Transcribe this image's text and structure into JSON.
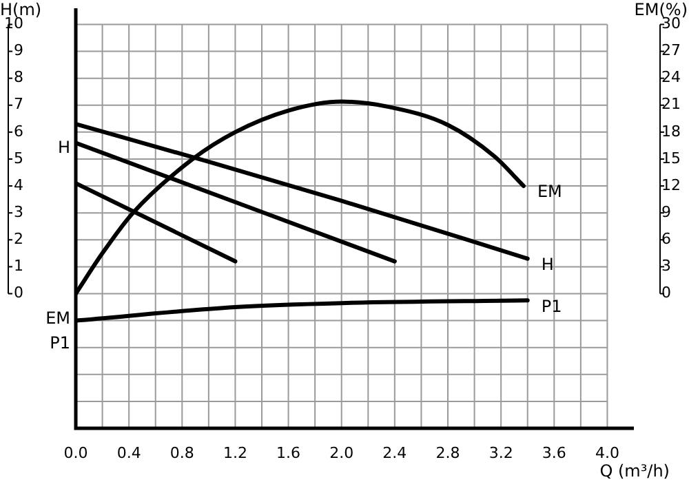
{
  "chart_data": {
    "type": "line",
    "xlabel": "Q (m³/h)",
    "ylabel": "H(m)",
    "y2label": "EM(%)",
    "xlim": [
      0,
      4.2
    ],
    "ylim": [
      -5,
      10.6
    ],
    "y2lim": [
      -15,
      31.8
    ],
    "xticks": [
      {
        "value": 0,
        "label": "0.0"
      },
      {
        "value": 0.2,
        "label": null
      },
      0.4,
      {
        "value": 0.6,
        "label": null
      },
      0.8,
      {
        "value": 1.0,
        "label": null
      },
      1.2,
      {
        "value": 1.4,
        "label": null
      },
      1.6,
      {
        "value": 1.8,
        "label": null
      },
      {
        "value": 2.0,
        "label": "2.0"
      },
      {
        "value": 2.2,
        "label": null
      },
      2.4,
      {
        "value": 2.6,
        "label": null
      },
      2.8,
      {
        "value": 3.0,
        "label": null
      },
      3.2,
      {
        "value": 3.4,
        "label": null
      },
      3.6,
      {
        "value": 3.8,
        "label": null
      },
      {
        "value": 4.0,
        "label": "4.0"
      }
    ],
    "yticks": [
      {
        "value": -5,
        "label": null
      },
      {
        "value": -4,
        "label": null
      },
      {
        "value": -3,
        "label": null
      },
      {
        "value": -2,
        "label": null
      },
      {
        "value": -1,
        "label": null
      },
      0,
      1,
      2,
      3,
      4,
      5,
      6,
      7,
      8,
      9,
      10
    ],
    "y2ticks": [
      0,
      3,
      6,
      9,
      12,
      15,
      18,
      21,
      24,
      27,
      30
    ],
    "grid": true,
    "legend": false,
    "marker": "none",
    "line_style": "solid",
    "series": [
      {
        "color": "#000000",
        "x": [
          0,
          1.2
        ],
        "values": [
          4.1,
          1.2
        ]
      },
      {
        "color": "#000000",
        "x": [
          0,
          1.2,
          2.4
        ],
        "values": [
          5.6,
          3.4,
          1.2
        ]
      },
      {
        "name": "H",
        "color": "#000000",
        "x": [
          0,
          1.0,
          2.0,
          3.4
        ],
        "values": [
          6.3,
          4.9,
          3.45,
          1.3
        ]
      },
      {
        "name": "EM",
        "color": "#000000",
        "axis": "y2",
        "x": [
          0,
          0.2,
          0.43,
          0.88,
          1.2,
          1.6,
          2.0,
          2.36,
          2.8,
          3.15,
          3.37
        ],
        "values": [
          0,
          4.5,
          9,
          15,
          18,
          20.4,
          21.4,
          20.8,
          18.8,
          15.3,
          12
        ]
      },
      {
        "name": "P1",
        "color": "#000000",
        "x": [
          0,
          1.2,
          2.0,
          3.4
        ],
        "values": [
          -1.0,
          -0.5,
          -0.35,
          -0.25
        ]
      }
    ],
    "annotations": [
      "H",
      "EM",
      "P1"
    ]
  }
}
